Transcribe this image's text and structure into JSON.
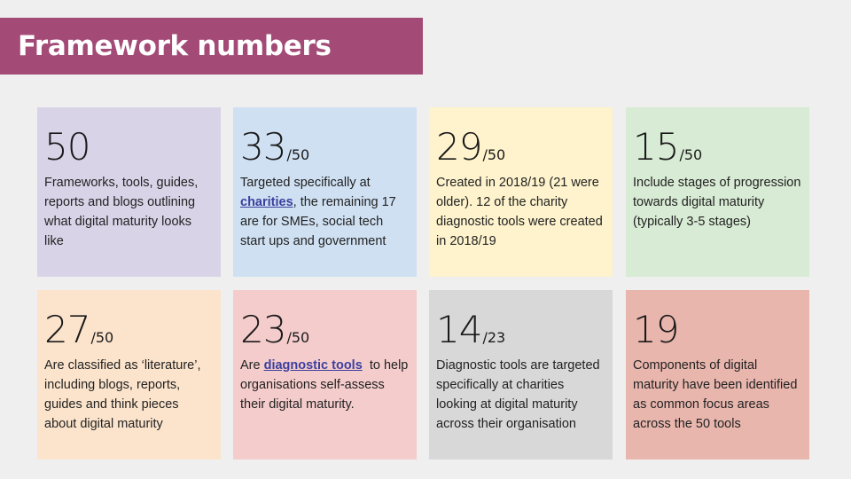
{
  "header": {
    "title": "Framework numbers"
  },
  "colors": {
    "banner": "#a34a76",
    "background": "#efefef",
    "link": "#3b3f9e",
    "cards": [
      "#d9d3e8",
      "#cfe0f2",
      "#fef3cc",
      "#d8ebd4",
      "#fce4cc",
      "#f5cccc",
      "#d8d8d8",
      "#e8b6ad"
    ]
  },
  "cards": [
    {
      "number": "50",
      "denominator": "",
      "text": "Frameworks, tools, guides, reports and blogs outlining what digital maturity looks like"
    },
    {
      "number": "33",
      "denominator": "/50",
      "text_before": "Targeted specifically at ",
      "link": "charities",
      "text_after": ", the remaining 17 are for SMEs, social tech start ups and government"
    },
    {
      "number": "29",
      "denominator": "/50",
      "text": "Created in 2018/19 (21 were older). 12 of the charity diagnostic tools were created in 2018/19"
    },
    {
      "number": "15",
      "denominator": "/50",
      "text": "Include stages of progression towards digital maturity (typically 3-5 stages)"
    },
    {
      "number": "27",
      "denominator": "/50",
      "text": "Are classified as ‘literature’, including blogs, reports, guides and think pieces about digital maturity"
    },
    {
      "number": "23",
      "denominator": "/50",
      "text_before": "Are ",
      "link": "diagnostic tools",
      "text_after": "  to help organisations self-assess their digital maturity."
    },
    {
      "number": "14",
      "denominator": "/23",
      "text": "Diagnostic tools are targeted specifically at charities looking at digital maturity across their organisation"
    },
    {
      "number": "19",
      "denominator": "",
      "text": "Components of digital maturity have been identified as common focus areas across the 50 tools"
    }
  ]
}
